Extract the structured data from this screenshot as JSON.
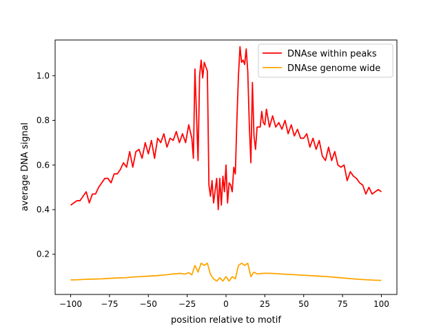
{
  "chart_data": {
    "type": "line",
    "title": "",
    "xlabel": "position relative to motif",
    "ylabel": "average DNA signal",
    "xlim": [
      -110,
      110
    ],
    "ylim": [
      0.02,
      1.16
    ],
    "xticks": [
      -100,
      -75,
      -50,
      -25,
      0,
      25,
      50,
      75,
      100
    ],
    "xtick_labels": [
      "−100",
      "−75",
      "−50",
      "−25",
      "0",
      "25",
      "50",
      "75",
      "100"
    ],
    "yticks": [
      0.2,
      0.4,
      0.6,
      0.8,
      1.0
    ],
    "ytick_labels": [
      "0.2",
      "0.4",
      "0.6",
      "0.8",
      "1.0"
    ],
    "grid": false,
    "legend_position": "upper right",
    "series": [
      {
        "name": "DNAse within peaks",
        "color": "#ff0000",
        "points": [
          [
            -100,
            0.42
          ],
          [
            -98,
            0.43
          ],
          [
            -96,
            0.44
          ],
          [
            -94,
            0.44
          ],
          [
            -92,
            0.46
          ],
          [
            -90,
            0.48
          ],
          [
            -88,
            0.43
          ],
          [
            -86,
            0.47
          ],
          [
            -84,
            0.47
          ],
          [
            -82,
            0.5
          ],
          [
            -80,
            0.52
          ],
          [
            -78,
            0.54
          ],
          [
            -76,
            0.54
          ],
          [
            -74,
            0.52
          ],
          [
            -72,
            0.56
          ],
          [
            -70,
            0.56
          ],
          [
            -68,
            0.58
          ],
          [
            -66,
            0.61
          ],
          [
            -64,
            0.59
          ],
          [
            -62,
            0.66
          ],
          [
            -60,
            0.59
          ],
          [
            -58,
            0.66
          ],
          [
            -56,
            0.67
          ],
          [
            -54,
            0.63
          ],
          [
            -52,
            0.7
          ],
          [
            -50,
            0.65
          ],
          [
            -48,
            0.71
          ],
          [
            -46,
            0.63
          ],
          [
            -44,
            0.72
          ],
          [
            -42,
            0.7
          ],
          [
            -40,
            0.74
          ],
          [
            -38,
            0.68
          ],
          [
            -36,
            0.72
          ],
          [
            -34,
            0.71
          ],
          [
            -32,
            0.75
          ],
          [
            -30,
            0.7
          ],
          [
            -28,
            0.74
          ],
          [
            -26,
            0.7
          ],
          [
            -24,
            0.78
          ],
          [
            -22,
            0.72
          ],
          [
            -21,
            0.63
          ],
          [
            -20,
            1.03
          ],
          [
            -18,
            0.62
          ],
          [
            -17,
            1.0
          ],
          [
            -16,
            1.07
          ],
          [
            -15,
            0.99
          ],
          [
            -14,
            1.06
          ],
          [
            -12,
            1.02
          ],
          [
            -11,
            0.51
          ],
          [
            -10,
            0.46
          ],
          [
            -9,
            0.53
          ],
          [
            -8,
            0.43
          ],
          [
            -6,
            0.54
          ],
          [
            -5,
            0.4
          ],
          [
            -4,
            0.54
          ],
          [
            -3,
            0.42
          ],
          [
            -2,
            0.55
          ],
          [
            -1,
            0.48
          ],
          [
            0,
            0.6
          ],
          [
            1,
            0.43
          ],
          [
            2,
            0.52
          ],
          [
            3,
            0.51
          ],
          [
            4,
            0.48
          ],
          [
            5,
            0.59
          ],
          [
            6,
            0.56
          ],
          [
            7,
            0.8
          ],
          [
            8,
            1.0
          ],
          [
            9,
            1.13
          ],
          [
            10,
            1.06
          ],
          [
            11,
            1.07
          ],
          [
            12,
            1.05
          ],
          [
            13,
            1.12
          ],
          [
            14,
            1.02
          ],
          [
            15,
            0.78
          ],
          [
            16,
            0.61
          ],
          [
            17,
            0.97
          ],
          [
            18,
            0.73
          ],
          [
            19,
            0.67
          ],
          [
            20,
            0.77
          ],
          [
            22,
            0.77
          ],
          [
            23,
            0.84
          ],
          [
            24,
            0.79
          ],
          [
            25,
            0.78
          ],
          [
            26,
            0.85
          ],
          [
            28,
            0.77
          ],
          [
            30,
            0.82
          ],
          [
            32,
            0.77
          ],
          [
            34,
            0.79
          ],
          [
            36,
            0.76
          ],
          [
            38,
            0.8
          ],
          [
            40,
            0.74
          ],
          [
            42,
            0.78
          ],
          [
            44,
            0.73
          ],
          [
            46,
            0.76
          ],
          [
            48,
            0.72
          ],
          [
            50,
            0.72
          ],
          [
            52,
            0.74
          ],
          [
            54,
            0.68
          ],
          [
            56,
            0.72
          ],
          [
            58,
            0.67
          ],
          [
            60,
            0.71
          ],
          [
            62,
            0.64
          ],
          [
            64,
            0.62
          ],
          [
            66,
            0.68
          ],
          [
            68,
            0.62
          ],
          [
            70,
            0.66
          ],
          [
            72,
            0.6
          ],
          [
            74,
            0.59
          ],
          [
            76,
            0.6
          ],
          [
            78,
            0.53
          ],
          [
            80,
            0.57
          ],
          [
            82,
            0.55
          ],
          [
            84,
            0.54
          ],
          [
            86,
            0.52
          ],
          [
            88,
            0.51
          ],
          [
            90,
            0.47
          ],
          [
            92,
            0.5
          ],
          [
            94,
            0.47
          ],
          [
            96,
            0.48
          ],
          [
            98,
            0.49
          ],
          [
            100,
            0.48
          ]
        ]
      },
      {
        "name": "DNAse genome wide",
        "color": "#ffa500",
        "points": [
          [
            -100,
            0.085
          ],
          [
            -95,
            0.086
          ],
          [
            -90,
            0.088
          ],
          [
            -85,
            0.089
          ],
          [
            -80,
            0.09
          ],
          [
            -75,
            0.092
          ],
          [
            -70,
            0.094
          ],
          [
            -65,
            0.095
          ],
          [
            -60,
            0.098
          ],
          [
            -55,
            0.1
          ],
          [
            -50,
            0.102
          ],
          [
            -45,
            0.104
          ],
          [
            -40,
            0.107
          ],
          [
            -35,
            0.111
          ],
          [
            -30,
            0.114
          ],
          [
            -26,
            0.112
          ],
          [
            -24,
            0.118
          ],
          [
            -22,
            0.108
          ],
          [
            -20,
            0.15
          ],
          [
            -18,
            0.12
          ],
          [
            -16,
            0.16
          ],
          [
            -14,
            0.15
          ],
          [
            -12,
            0.16
          ],
          [
            -10,
            0.11
          ],
          [
            -8,
            0.09
          ],
          [
            -6,
            0.08
          ],
          [
            -4,
            0.095
          ],
          [
            -2,
            0.08
          ],
          [
            0,
            0.1
          ],
          [
            2,
            0.08
          ],
          [
            4,
            0.1
          ],
          [
            6,
            0.09
          ],
          [
            8,
            0.15
          ],
          [
            10,
            0.16
          ],
          [
            12,
            0.15
          ],
          [
            14,
            0.16
          ],
          [
            16,
            0.1
          ],
          [
            18,
            0.12
          ],
          [
            20,
            0.112
          ],
          [
            25,
            0.115
          ],
          [
            30,
            0.114
          ],
          [
            35,
            0.112
          ],
          [
            40,
            0.11
          ],
          [
            45,
            0.108
          ],
          [
            50,
            0.106
          ],
          [
            55,
            0.104
          ],
          [
            60,
            0.102
          ],
          [
            65,
            0.1
          ],
          [
            70,
            0.097
          ],
          [
            75,
            0.094
          ],
          [
            80,
            0.091
          ],
          [
            85,
            0.088
          ],
          [
            90,
            0.086
          ],
          [
            95,
            0.084
          ],
          [
            100,
            0.083
          ]
        ]
      }
    ]
  }
}
